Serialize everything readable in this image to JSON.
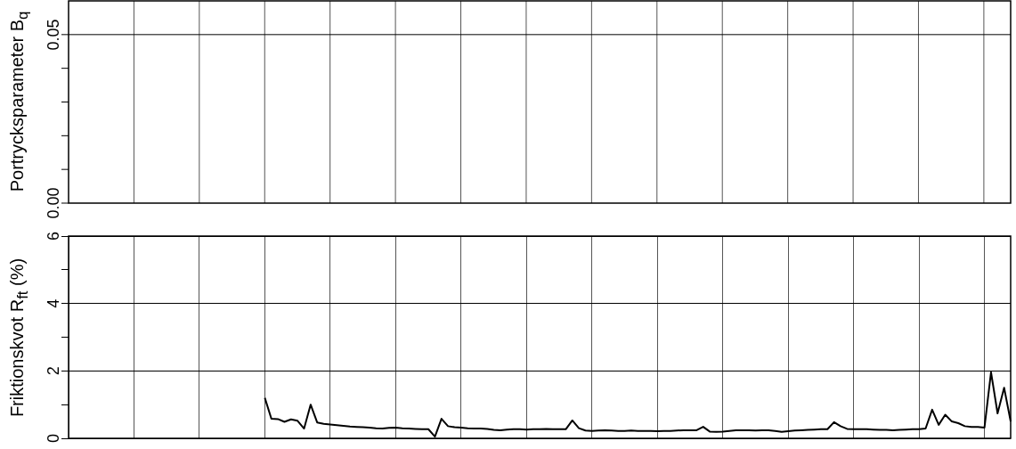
{
  "chart_data": [
    {
      "type": "other",
      "ylabel": "Portrycksparameter B$_{q}$",
      "annotations": [
        "0.00",
        "0.05"
      ]
    },
    {
      "type": "line",
      "ylabel": "Friktionskvot R$_{ft}$  (%)",
      "categories": [
        null,
        null,
        null,
        null,
        null,
        null,
        null,
        null,
        null,
        null,
        null,
        null,
        null,
        null,
        null,
        null,
        null,
        null,
        null,
        null,
        null,
        null,
        null,
        null,
        null,
        null,
        null,
        null,
        null,
        null,
        null,
        null,
        null,
        null,
        null,
        null,
        null,
        null,
        null,
        null,
        null,
        null,
        null,
        null,
        null,
        null,
        null,
        null,
        null,
        null,
        null,
        null,
        null,
        null,
        null,
        null,
        null,
        null,
        null,
        null,
        null,
        null,
        null,
        null,
        null,
        null,
        null,
        null,
        null,
        null,
        null,
        null,
        null,
        null,
        null,
        null,
        null,
        null,
        null,
        null,
        null,
        null,
        null,
        null,
        null,
        null,
        null,
        null,
        null,
        null,
        null,
        null,
        null,
        null,
        null,
        null,
        null,
        null,
        null,
        null,
        null,
        null,
        null,
        null,
        null,
        null,
        null,
        null,
        null,
        null,
        null,
        null,
        null,
        null,
        null,
        null,
        null,
        null,
        null,
        null,
        null,
        null,
        null,
        null,
        null,
        null,
        null,
        null,
        null,
        null,
        null,
        null,
        null,
        null,
        null,
        null,
        null,
        null,
        null,
        null,
        null,
        null,
        null,
        null,
        null
      ],
      "series": [
        {
          "color": "#000000",
          "values": [
            null,
            null,
            null,
            null,
            null,
            null,
            null,
            null,
            null,
            null,
            null,
            null,
            null,
            null,
            null,
            null,
            null,
            null,
            null,
            null,
            null,
            null,
            null,
            null,
            null,
            null,
            null,
            null,
            null,
            null,
            1.2,
            0.58,
            0.57,
            0.49,
            0.56,
            0.52,
            0.29,
            1.0,
            0.47,
            0.43,
            0.41,
            0.39,
            0.37,
            0.35,
            0.34,
            0.33,
            0.32,
            0.3,
            0.29,
            0.31,
            0.32,
            0.3,
            0.29,
            0.28,
            0.27,
            0.27,
            0.05,
            0.58,
            0.36,
            0.33,
            0.32,
            0.3,
            0.29,
            0.29,
            0.28,
            0.25,
            0.24,
            0.26,
            0.27,
            0.27,
            0.26,
            0.27,
            0.27,
            0.28,
            0.27,
            0.27,
            0.27,
            0.53,
            0.3,
            0.23,
            0.22,
            0.23,
            0.24,
            0.23,
            0.22,
            0.22,
            0.23,
            0.22,
            0.22,
            0.22,
            0.21,
            0.22,
            0.22,
            0.23,
            0.24,
            0.24,
            0.24,
            0.34,
            0.2,
            0.19,
            0.2,
            0.22,
            0.24,
            0.24,
            0.24,
            0.23,
            0.24,
            0.24,
            0.22,
            0.19,
            0.21,
            0.23,
            0.24,
            0.25,
            0.26,
            0.27,
            0.27,
            0.48,
            0.36,
            0.28,
            0.27,
            0.27,
            0.27,
            0.26,
            0.25,
            0.25,
            0.24,
            0.25,
            0.26,
            0.27,
            0.27,
            0.29,
            0.85,
            0.4,
            0.7,
            0.5,
            0.45,
            0.36,
            0.34,
            0.34,
            0.32,
            1.96,
            0.74,
            1.5,
            0.5
          ]
        }
      ],
      "ylim": [
        0,
        6
      ],
      "yticks": [
        {
          "value": 0,
          "label": "0"
        },
        {
          "value": 1,
          "label": null
        },
        {
          "value": 2,
          "label": "2"
        },
        {
          "value": 3,
          "label": null
        },
        {
          "value": 4,
          "label": "4"
        },
        {
          "value": 5,
          "label": null
        },
        {
          "value": 6,
          "label": "6"
        }
      ],
      "grid": true,
      "tick_labels": "y"
    }
  ]
}
